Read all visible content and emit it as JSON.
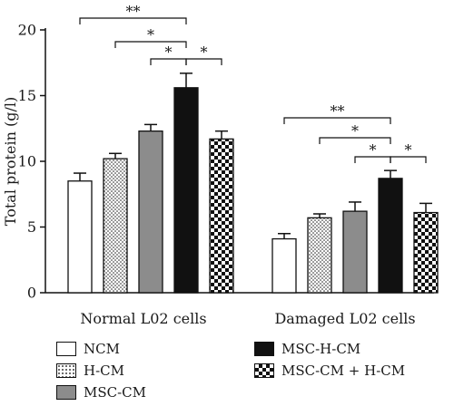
{
  "chart_data": {
    "type": "bar",
    "ylabel": "Total protein (g/l)",
    "ylim": [
      0,
      20
    ],
    "yticks": [
      0,
      5,
      10,
      15,
      20
    ],
    "groups": [
      "Normal L02 cells",
      "Damaged L02 cells"
    ],
    "series": [
      {
        "name": "NCM",
        "fill": "white",
        "values": [
          8.5,
          4.1
        ],
        "errors": [
          0.6,
          0.4
        ]
      },
      {
        "name": "H-CM",
        "fill": "dots",
        "values": [
          10.2,
          5.7
        ],
        "errors": [
          0.4,
          0.3
        ]
      },
      {
        "name": "MSC-CM",
        "fill": "gray",
        "values": [
          12.3,
          6.2
        ],
        "errors": [
          0.5,
          0.7
        ]
      },
      {
        "name": "MSC-H-CM",
        "fill": "black",
        "values": [
          15.6,
          8.7
        ],
        "errors": [
          1.1,
          0.6
        ]
      },
      {
        "name": "MSC-CM + H-CM",
        "fill": "checker",
        "values": [
          11.7,
          6.1
        ],
        "errors": [
          0.6,
          0.7
        ]
      }
    ],
    "significance": [
      [
        {
          "from": 0,
          "to": 3,
          "label": "**"
        },
        {
          "from": 1,
          "to": 3,
          "label": "*"
        },
        {
          "from": 2,
          "to": 3,
          "label": "*"
        },
        {
          "from": 3,
          "to": 4,
          "label": "*"
        }
      ],
      [
        {
          "from": 0,
          "to": 3,
          "label": "**"
        },
        {
          "from": 1,
          "to": 3,
          "label": "*"
        },
        {
          "from": 2,
          "to": 3,
          "label": "*"
        },
        {
          "from": 3,
          "to": 4,
          "label": "*"
        }
      ]
    ],
    "grid": false,
    "legend_position": "bottom"
  },
  "colors": {
    "gray": "#8c8c8c",
    "black": "#111111",
    "outline": "#111111"
  }
}
